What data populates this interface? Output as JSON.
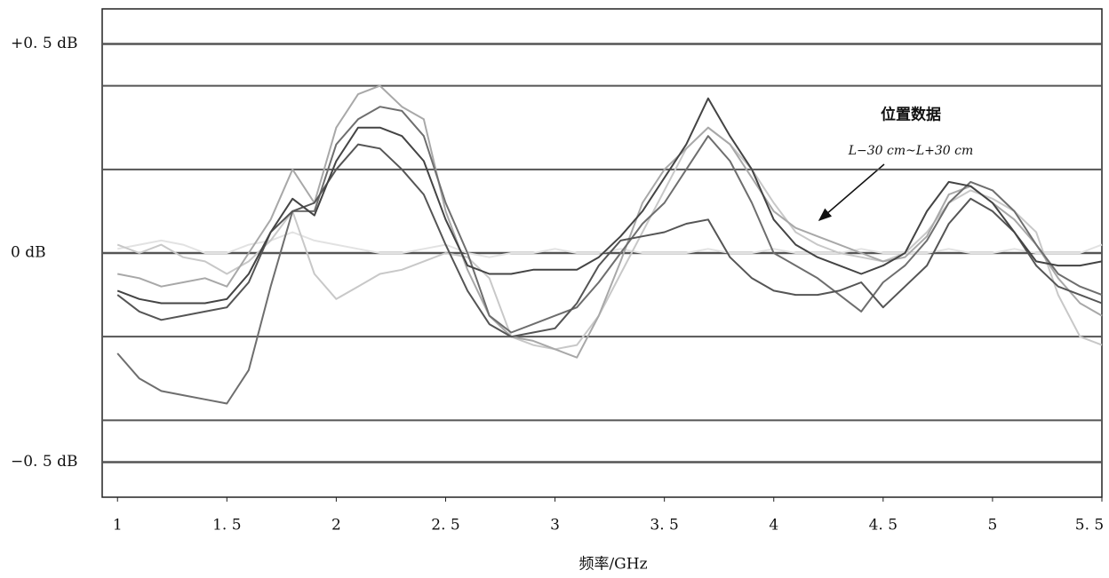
{
  "chart_data": {
    "type": "line",
    "x_label": "频率/GHz",
    "annotation_title": "位置数据",
    "annotation_range": "L−30 cm~L+30 cm",
    "xlim": [
      0.93,
      5.5
    ],
    "ylim": [
      -0.584,
      0.584
    ],
    "xticks": [
      1,
      {
        "value": 1.5,
        "label": "1. 5"
      },
      2,
      {
        "value": 2.5,
        "label": "2. 5"
      },
      3,
      {
        "value": 3.5,
        "label": "3. 5"
      },
      4,
      {
        "value": 4.5,
        "label": "4. 5"
      },
      5,
      {
        "value": 5.5,
        "label": "5. 5"
      }
    ],
    "yticks": [
      {
        "value": 0.5,
        "label": "+0. 5 dB"
      },
      {
        "value": 0,
        "label": "0 dB"
      },
      {
        "value": -0.5,
        "label": "−0. 5 dB"
      }
    ],
    "grid_values": [
      0.4,
      0.2,
      -0.2,
      -0.4
    ],
    "grid": true,
    "x": [
      1.0,
      1.1,
      1.2,
      1.3,
      1.4,
      1.5,
      1.6,
      1.7,
      1.8,
      1.9,
      2.0,
      2.1,
      2.2,
      2.3,
      2.4,
      2.5,
      2.6,
      2.7,
      2.8,
      2.9,
      3.0,
      3.1,
      3.2,
      3.3,
      3.4,
      3.5,
      3.6,
      3.7,
      3.8,
      3.9,
      4.0,
      4.1,
      4.2,
      4.3,
      4.4,
      4.5,
      4.6,
      4.7,
      4.8,
      4.9,
      5.0,
      5.1,
      5.2,
      5.3,
      5.4,
      5.5
    ],
    "series": [
      {
        "color": "#e2e2e2",
        "values": [
          0.01,
          0.02,
          0.03,
          0.02,
          0.0,
          0.0,
          0.02,
          0.03,
          0.05,
          0.03,
          0.02,
          0.01,
          0.0,
          0.0,
          0.01,
          0.02,
          0.0,
          -0.01,
          0.0,
          0.0,
          0.01,
          0.0,
          0.0,
          0.01,
          0.0,
          0.0,
          0.0,
          0.01,
          0.0,
          0.0,
          0.01,
          0.0,
          0.0,
          0.0,
          0.01,
          0.0,
          0.0,
          0.0,
          0.01,
          0.0,
          0.0,
          0.01,
          0.0,
          0.0,
          0.0,
          0.02
        ]
      },
      {
        "color": "#c8c8c8",
        "values": [
          0.02,
          0.0,
          0.02,
          -0.01,
          -0.02,
          -0.05,
          -0.02,
          0.03,
          0.1,
          -0.05,
          -0.11,
          -0.08,
          -0.05,
          -0.04,
          -0.02,
          0.0,
          -0.01,
          -0.06,
          -0.2,
          -0.22,
          -0.23,
          -0.22,
          -0.15,
          -0.05,
          0.05,
          0.15,
          0.25,
          0.3,
          0.26,
          0.2,
          0.12,
          0.05,
          0.02,
          0.0,
          -0.01,
          -0.02,
          0.0,
          0.05,
          0.12,
          0.15,
          0.13,
          0.1,
          0.05,
          -0.1,
          -0.2,
          -0.22
        ]
      },
      {
        "color": "#a8a8a8",
        "values": [
          -0.05,
          -0.06,
          -0.08,
          -0.07,
          -0.06,
          -0.08,
          0.0,
          0.08,
          0.2,
          0.12,
          0.3,
          0.38,
          0.4,
          0.35,
          0.32,
          0.1,
          -0.04,
          -0.15,
          -0.2,
          -0.21,
          -0.23,
          -0.25,
          -0.15,
          -0.02,
          0.12,
          0.2,
          0.25,
          0.3,
          0.26,
          0.18,
          0.1,
          0.06,
          0.04,
          0.02,
          0.0,
          -0.02,
          -0.01,
          0.04,
          0.14,
          0.16,
          0.12,
          0.08,
          0.02,
          -0.06,
          -0.12,
          -0.15
        ]
      },
      {
        "color": "#6e6e6e",
        "values": [
          -0.24,
          -0.3,
          -0.33,
          -0.34,
          -0.35,
          -0.36,
          -0.28,
          -0.08,
          0.1,
          0.1,
          0.26,
          0.32,
          0.35,
          0.34,
          0.28,
          0.12,
          0.0,
          -0.15,
          -0.19,
          -0.17,
          -0.15,
          -0.13,
          -0.07,
          0.0,
          0.07,
          0.12,
          0.2,
          0.28,
          0.22,
          0.12,
          0.0,
          -0.03,
          -0.06,
          -0.1,
          -0.14,
          -0.07,
          -0.03,
          0.03,
          0.12,
          0.17,
          0.15,
          0.1,
          0.02,
          -0.05,
          -0.08,
          -0.1
        ]
      },
      {
        "color": "#555555",
        "values": [
          -0.1,
          -0.14,
          -0.16,
          -0.15,
          -0.14,
          -0.13,
          -0.07,
          0.05,
          0.1,
          0.12,
          0.2,
          0.26,
          0.25,
          0.2,
          0.14,
          0.02,
          -0.09,
          -0.17,
          -0.2,
          -0.19,
          -0.18,
          -0.12,
          -0.03,
          0.03,
          0.04,
          0.05,
          0.07,
          0.08,
          -0.01,
          -0.06,
          -0.09,
          -0.1,
          -0.1,
          -0.09,
          -0.07,
          -0.13,
          -0.08,
          -0.03,
          0.07,
          0.13,
          0.1,
          0.05,
          -0.03,
          -0.08,
          -0.1,
          -0.12
        ]
      },
      {
        "color": "#444444",
        "values": [
          -0.09,
          -0.11,
          -0.12,
          -0.12,
          -0.12,
          -0.11,
          -0.05,
          0.05,
          0.13,
          0.09,
          0.22,
          0.3,
          0.3,
          0.28,
          0.22,
          0.08,
          -0.03,
          -0.05,
          -0.05,
          -0.04,
          -0.04,
          -0.04,
          -0.01,
          0.04,
          0.1,
          0.18,
          0.26,
          0.37,
          0.28,
          0.2,
          0.08,
          0.02,
          -0.01,
          -0.03,
          -0.05,
          -0.03,
          0.0,
          0.1,
          0.17,
          0.16,
          0.12,
          0.05,
          -0.02,
          -0.03,
          -0.03,
          -0.02
        ]
      }
    ]
  }
}
